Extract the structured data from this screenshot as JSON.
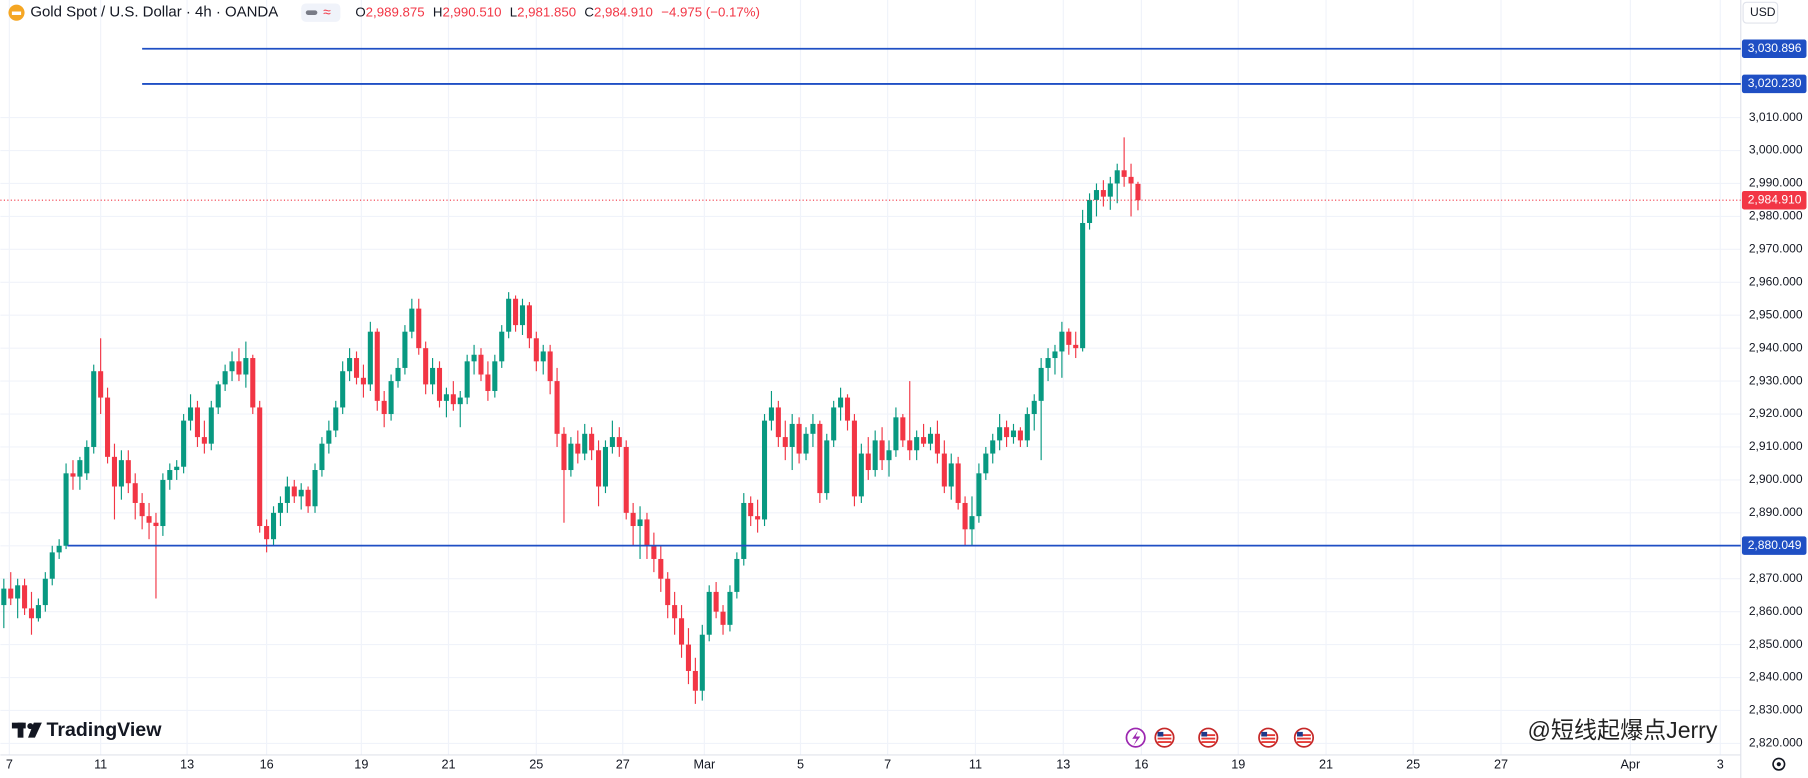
{
  "header": {
    "symbol": "Gold Spot / U.S. Dollar · 4h · OANDA",
    "open_key": "O",
    "open": "2,989.875",
    "high_key": "H",
    "high": "2,990.510",
    "low_key": "L",
    "low": "2,981.850",
    "close_key": "C",
    "close": "2,984.910",
    "change": "−4.975 (−0.17%)"
  },
  "currency": "USD",
  "watermark": "TradingView",
  "credit": "@短线起爆点Jerry",
  "chart_data": {
    "type": "candlestick",
    "up_color": "#089981",
    "down_color": "#f23645",
    "grid": true,
    "xlim": [
      -0.5,
      251.17
    ],
    "ylim": [
      2816.5,
      3045.7
    ],
    "xticks": [
      {
        "value": 0.8,
        "label": "7"
      },
      {
        "value": 14,
        "label": "11"
      },
      {
        "value": 26.5,
        "label": "13"
      },
      {
        "value": 38,
        "label": "16"
      },
      {
        "value": 51.7,
        "label": "19"
      },
      {
        "value": 64.3,
        "label": "21"
      },
      {
        "value": 77,
        "label": "25"
      },
      {
        "value": 89.5,
        "label": "27"
      },
      {
        "value": 101.3,
        "label": "Mar"
      },
      {
        "value": 115.2,
        "label": "5"
      },
      {
        "value": 127.8,
        "label": "7"
      },
      {
        "value": 140.5,
        "label": "11"
      },
      {
        "value": 153.2,
        "label": "13"
      },
      {
        "value": 164.5,
        "label": "16"
      },
      {
        "value": 178.5,
        "label": "19"
      },
      {
        "value": 191.2,
        "label": "21"
      },
      {
        "value": 203.8,
        "label": "25"
      },
      {
        "value": 216.5,
        "label": "27"
      },
      {
        "value": 235.2,
        "label": "Apr"
      },
      {
        "value": 248.2,
        "label": "3"
      }
    ],
    "yticks": [
      {
        "value": 2820,
        "label": "2,820.000"
      },
      {
        "value": 2830,
        "label": "2,830.000"
      },
      {
        "value": 2840,
        "label": "2,840.000"
      },
      {
        "value": 2850,
        "label": "2,850.000"
      },
      {
        "value": 2860,
        "label": "2,860.000"
      },
      {
        "value": 2870,
        "label": "2,870.000"
      },
      {
        "value": 2880,
        "label": "2,880.000"
      },
      {
        "value": 2890,
        "label": "2,890.000"
      },
      {
        "value": 2900,
        "label": "2,900.000"
      },
      {
        "value": 2910,
        "label": "2,910.000"
      },
      {
        "value": 2920,
        "label": "2,920.000"
      },
      {
        "value": 2930,
        "label": "2,930.000"
      },
      {
        "value": 2940,
        "label": "2,940.000"
      },
      {
        "value": 2950,
        "label": "2,950.000"
      },
      {
        "value": 2960,
        "label": "2,960.000"
      },
      {
        "value": 2970,
        "label": "2,970.000"
      },
      {
        "value": 2980,
        "label": "2,980.000"
      },
      {
        "value": 2990,
        "label": "2,990.000"
      },
      {
        "value": 3000,
        "label": "3,000.000"
      },
      {
        "value": 3010,
        "label": "3,010.000"
      }
    ],
    "hlines": [
      {
        "value": 3030.896,
        "label": "3,030.896",
        "from": 20,
        "color": "#1f4fc4"
      },
      {
        "value": 3020.23,
        "label": "3,020.230",
        "from": 20,
        "color": "#1f4fc4"
      },
      {
        "value": 2880.049,
        "label": "2,880.049",
        "from": 9.2,
        "color": "#1f4fc4"
      }
    ],
    "last_price": {
      "value": 2984.91,
      "label": "2,984.910",
      "color": "#f23645"
    },
    "ohlc": [
      [
        2862,
        2870,
        2855,
        2867
      ],
      [
        2867,
        2872,
        2862,
        2864
      ],
      [
        2864,
        2870,
        2858,
        2868
      ],
      [
        2868,
        2870,
        2859,
        2861
      ],
      [
        2861,
        2866,
        2853,
        2858
      ],
      [
        2858,
        2864,
        2857,
        2862
      ],
      [
        2862,
        2872,
        2860,
        2870
      ],
      [
        2870,
        2880,
        2868,
        2878
      ],
      [
        2878,
        2882,
        2876,
        2880
      ],
      [
        2880,
        2905,
        2879,
        2902
      ],
      [
        2902,
        2906,
        2897,
        2901
      ],
      [
        2901,
        2907,
        2897,
        2906
      ],
      [
        2902,
        2912,
        2900,
        2910
      ],
      [
        2910,
        2935,
        2908,
        2933
      ],
      [
        2933,
        2943,
        2920,
        2925
      ],
      [
        2925,
        2928,
        2905,
        2907
      ],
      [
        2907,
        2911,
        2888,
        2898
      ],
      [
        2898,
        2909,
        2894,
        2906
      ],
      [
        2906,
        2909,
        2896,
        2899
      ],
      [
        2899,
        2902,
        2888,
        2893
      ],
      [
        2893,
        2896,
        2885,
        2889
      ],
      [
        2889,
        2893,
        2882,
        2887
      ],
      [
        2887,
        2890,
        2864,
        2886
      ],
      [
        2886,
        2902,
        2883,
        2900
      ],
      [
        2900,
        2905,
        2897,
        2903
      ],
      [
        2903,
        2906,
        2900,
        2904
      ],
      [
        2904,
        2920,
        2902,
        2918
      ],
      [
        2918,
        2926,
        2915,
        2922
      ],
      [
        2922,
        2924,
        2910,
        2913
      ],
      [
        2913,
        2918,
        2908,
        2911
      ],
      [
        2911,
        2924,
        2909,
        2922
      ],
      [
        2922,
        2930,
        2920,
        2929
      ],
      [
        2929,
        2935,
        2927,
        2933
      ],
      [
        2933,
        2939,
        2930,
        2936
      ],
      [
        2936,
        2940,
        2930,
        2932
      ],
      [
        2932,
        2942,
        2928,
        2937
      ],
      [
        2937,
        2938,
        2920,
        2922
      ],
      [
        2922,
        2924,
        2884,
        2886
      ],
      [
        2886,
        2888,
        2878,
        2882
      ],
      [
        2882,
        2892,
        2880,
        2890
      ],
      [
        2890,
        2895,
        2886,
        2893
      ],
      [
        2893,
        2901,
        2890,
        2898
      ],
      [
        2898,
        2900,
        2893,
        2895
      ],
      [
        2895,
        2899,
        2891,
        2897
      ],
      [
        2897,
        2898,
        2890,
        2892
      ],
      [
        2892,
        2905,
        2890,
        2903
      ],
      [
        2903,
        2913,
        2901,
        2911
      ],
      [
        2911,
        2918,
        2908,
        2915
      ],
      [
        2915,
        2924,
        2913,
        2922
      ],
      [
        2922,
        2936,
        2920,
        2933
      ],
      [
        2933,
        2940,
        2930,
        2937
      ],
      [
        2937,
        2939,
        2929,
        2931
      ],
      [
        2931,
        2935,
        2925,
        2929
      ],
      [
        2929,
        2948,
        2927,
        2945
      ],
      [
        2945,
        2946,
        2921,
        2924
      ],
      [
        2924,
        2927,
        2916,
        2920
      ],
      [
        2920,
        2932,
        2918,
        2930
      ],
      [
        2930,
        2937,
        2928,
        2934
      ],
      [
        2934,
        2947,
        2932,
        2945
      ],
      [
        2945,
        2955,
        2943,
        2952
      ],
      [
        2952,
        2955,
        2938,
        2940
      ],
      [
        2940,
        2942,
        2926,
        2929
      ],
      [
        2929,
        2937,
        2926,
        2934
      ],
      [
        2934,
        2936,
        2922,
        2924
      ],
      [
        2924,
        2928,
        2919,
        2926
      ],
      [
        2926,
        2930,
        2921,
        2923
      ],
      [
        2923,
        2927,
        2916,
        2925
      ],
      [
        2925,
        2938,
        2923,
        2936
      ],
      [
        2936,
        2941,
        2932,
        2938
      ],
      [
        2938,
        2940,
        2930,
        2932
      ],
      [
        2932,
        2936,
        2924,
        2927
      ],
      [
        2927,
        2938,
        2925,
        2936
      ],
      [
        2936,
        2947,
        2934,
        2945
      ],
      [
        2945,
        2957,
        2943,
        2955
      ],
      [
        2955,
        2956,
        2945,
        2947
      ],
      [
        2947,
        2955,
        2944,
        2953
      ],
      [
        2953,
        2954,
        2940,
        2943
      ],
      [
        2943,
        2945,
        2933,
        2936
      ],
      [
        2936,
        2941,
        2932,
        2939
      ],
      [
        2939,
        2941,
        2926,
        2930
      ],
      [
        2930,
        2934,
        2910,
        2914
      ],
      [
        2914,
        2916,
        2887,
        2903
      ],
      [
        2903,
        2913,
        2901,
        2911
      ],
      [
        2911,
        2915,
        2905,
        2908
      ],
      [
        2908,
        2917,
        2906,
        2914
      ],
      [
        2914,
        2916,
        2906,
        2909
      ],
      [
        2909,
        2912,
        2892,
        2898
      ],
      [
        2898,
        2912,
        2896,
        2910
      ],
      [
        2910,
        2918,
        2908,
        2913
      ],
      [
        2913,
        2916,
        2907,
        2910
      ],
      [
        2910,
        2912,
        2888,
        2890
      ],
      [
        2890,
        2893,
        2880,
        2886
      ],
      [
        2886,
        2892,
        2876,
        2888
      ],
      [
        2888,
        2890,
        2876,
        2880
      ],
      [
        2880,
        2884,
        2872,
        2876
      ],
      [
        2876,
        2880,
        2866,
        2870
      ],
      [
        2870,
        2872,
        2858,
        2862
      ],
      [
        2862,
        2866,
        2853,
        2858
      ],
      [
        2858,
        2862,
        2846,
        2850
      ],
      [
        2850,
        2855,
        2838,
        2842
      ],
      [
        2842,
        2846,
        2832,
        2836
      ],
      [
        2836,
        2856,
        2833,
        2853
      ],
      [
        2853,
        2868,
        2851,
        2866
      ],
      [
        2866,
        2869,
        2858,
        2860
      ],
      [
        2860,
        2862,
        2853,
        2856
      ],
      [
        2856,
        2868,
        2854,
        2866
      ],
      [
        2866,
        2878,
        2864,
        2876
      ],
      [
        2876,
        2896,
        2874,
        2893
      ],
      [
        2893,
        2895,
        2886,
        2889
      ],
      [
        2889,
        2894,
        2884,
        2888
      ],
      [
        2888,
        2920,
        2886,
        2918
      ],
      [
        2918,
        2927,
        2915,
        2922
      ],
      [
        2922,
        2924,
        2910,
        2913
      ],
      [
        2913,
        2918,
        2906,
        2910
      ],
      [
        2910,
        2920,
        2903,
        2917
      ],
      [
        2917,
        2919,
        2905,
        2908
      ],
      [
        2908,
        2916,
        2906,
        2914
      ],
      [
        2914,
        2920,
        2910,
        2917
      ],
      [
        2917,
        2918,
        2893,
        2896
      ],
      [
        2896,
        2914,
        2894,
        2912
      ],
      [
        2912,
        2924,
        2910,
        2922
      ],
      [
        2922,
        2928,
        2918,
        2925
      ],
      [
        2925,
        2926,
        2915,
        2918
      ],
      [
        2918,
        2920,
        2892,
        2895
      ],
      [
        2895,
        2911,
        2893,
        2908
      ],
      [
        2908,
        2913,
        2900,
        2903
      ],
      [
        2903,
        2915,
        2901,
        2912
      ],
      [
        2912,
        2916,
        2903,
        2906
      ],
      [
        2906,
        2912,
        2901,
        2909
      ],
      [
        2909,
        2922,
        2907,
        2919
      ],
      [
        2919,
        2920,
        2910,
        2912
      ],
      [
        2912,
        2930,
        2906,
        2909
      ],
      [
        2909,
        2915,
        2906,
        2913
      ],
      [
        2913,
        2917,
        2910,
        2911
      ],
      [
        2911,
        2916,
        2909,
        2914
      ],
      [
        2914,
        2918,
        2905,
        2908
      ],
      [
        2908,
        2912,
        2896,
        2898
      ],
      [
        2898,
        2908,
        2894,
        2905
      ],
      [
        2905,
        2907,
        2891,
        2893
      ],
      [
        2893,
        2895,
        2880,
        2885
      ],
      [
        2885,
        2895,
        2880,
        2889
      ],
      [
        2889,
        2905,
        2887,
        2902
      ],
      [
        2902,
        2910,
        2900,
        2908
      ],
      [
        2908,
        2914,
        2905,
        2912
      ],
      [
        2912,
        2920,
        2909,
        2916
      ],
      [
        2916,
        2918,
        2910,
        2913
      ],
      [
        2913,
        2917,
        2911,
        2915
      ],
      [
        2915,
        2916,
        2910,
        2912
      ],
      [
        2912,
        2922,
        2910,
        2920
      ],
      [
        2920,
        2926,
        2915,
        2924
      ],
      [
        2924,
        2937,
        2906,
        2934
      ],
      [
        2934,
        2940,
        2930,
        2937
      ],
      [
        2937,
        2941,
        2932,
        2939
      ],
      [
        2939,
        2948,
        2931,
        2945
      ],
      [
        2945,
        2946,
        2938,
        2941
      ],
      [
        2941,
        2945,
        2937,
        2940
      ],
      [
        2940,
        2982,
        2939,
        2978
      ],
      [
        2978,
        2987,
        2976,
        2985
      ],
      [
        2985,
        2990,
        2980,
        2988
      ],
      [
        2988,
        2991,
        2983,
        2986
      ],
      [
        2986,
        2992,
        2982,
        2990
      ],
      [
        2990,
        2996,
        2984,
        2994
      ],
      [
        2994,
        3004,
        2989,
        2992
      ],
      [
        2992,
        2996,
        2980,
        2990
      ],
      [
        2989.875,
        2990.51,
        2981.85,
        2984.91
      ]
    ]
  }
}
